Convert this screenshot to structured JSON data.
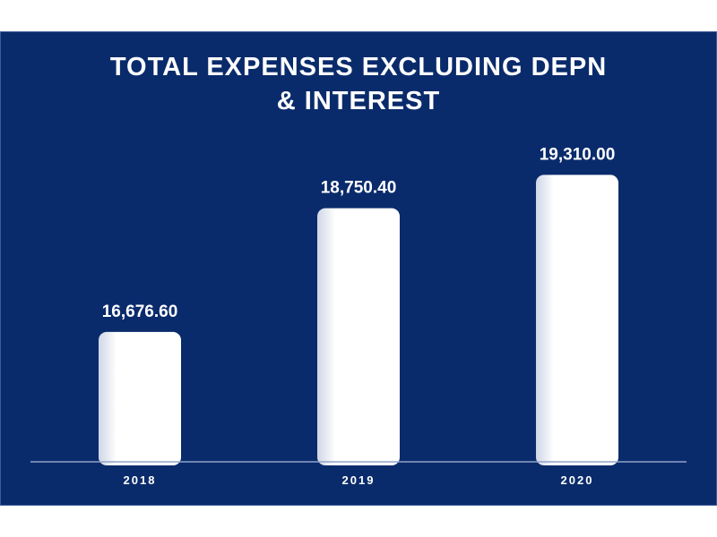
{
  "chart_data": {
    "type": "bar",
    "title_lines": [
      "TOTAL EXPENSES EXCLUDING DEPN",
      "& INTEREST"
    ],
    "categories": [
      "2018",
      "2019",
      "2020"
    ],
    "values": [
      16676.6,
      18750.4,
      19310.0
    ],
    "value_labels": [
      "16,676.60",
      "18,750.40",
      "19,310.00"
    ],
    "ylim": [
      14500,
      19660
    ],
    "grid": false,
    "legend": "none"
  },
  "colors": {
    "background": "#0a2b6b",
    "bar": "#ffffff",
    "text": "#ffffff",
    "axis": "#8fa3c9"
  }
}
